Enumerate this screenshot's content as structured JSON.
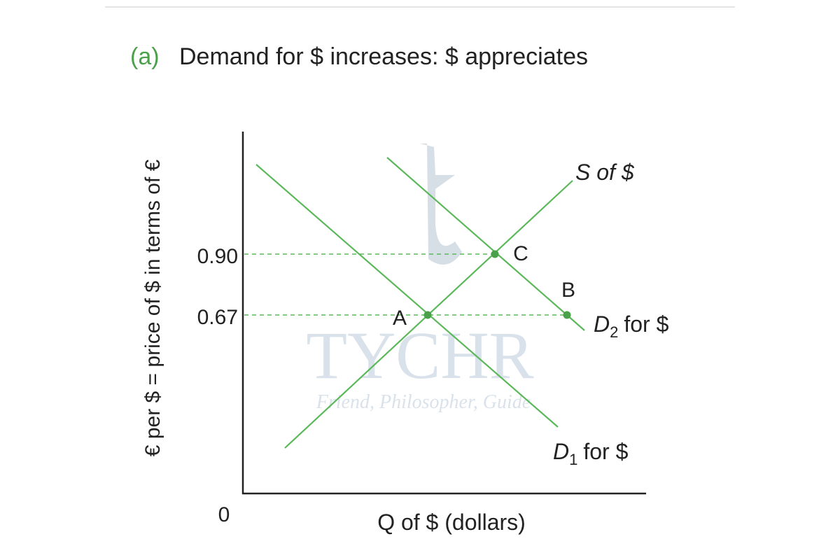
{
  "header": {
    "panel": "(a)",
    "title": "Demand for $ increases: $ appreciates"
  },
  "axes": {
    "y_label": "€ per $ = price of $ in terms of €",
    "x_label": "Q of $ (dollars)",
    "origin": "0",
    "ticks": [
      "0.90",
      "0.67"
    ]
  },
  "curves": [
    {
      "name": "S of $"
    },
    {
      "letter": "D",
      "sub": "2",
      "rest": "for $"
    },
    {
      "letter": "D",
      "sub": "1",
      "rest": "for $"
    }
  ],
  "points": [
    "A",
    "B",
    "C"
  ],
  "watermark": {
    "brand": "TYCHR",
    "tagline": "Friend, Philosopher, Guide"
  }
}
